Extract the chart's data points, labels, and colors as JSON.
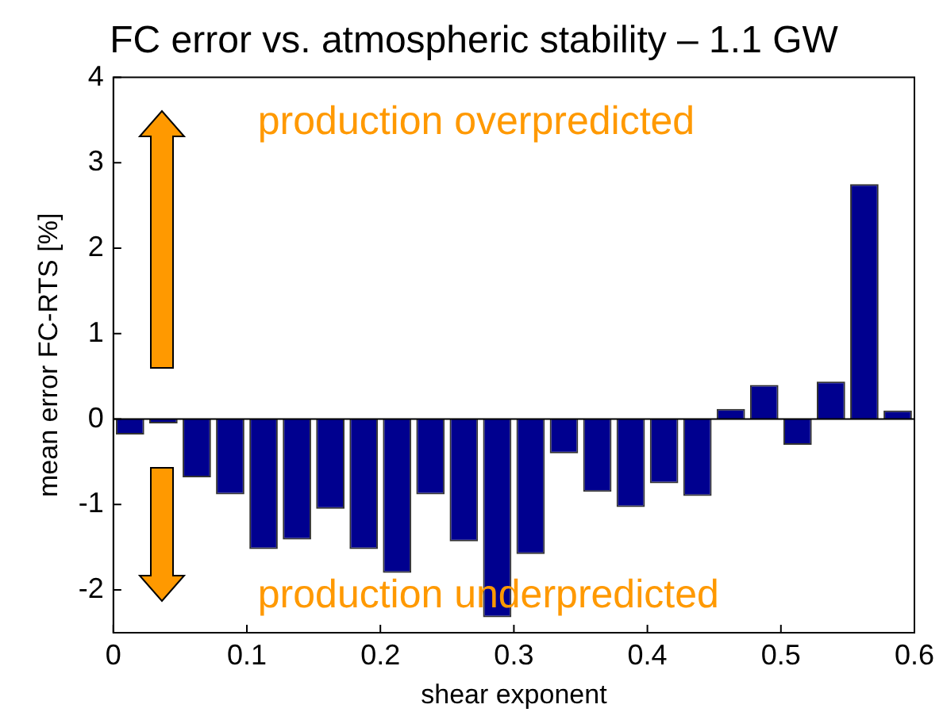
{
  "chart_data": {
    "type": "bar",
    "title": "FC error vs. atmospheric stability – 1.1 GW",
    "xlabel": "shear exponent",
    "ylabel": "mean error FC-RTS [%]",
    "x": [
      0.0125,
      0.0375,
      0.0625,
      0.0875,
      0.1125,
      0.1375,
      0.1625,
      0.1875,
      0.2125,
      0.2375,
      0.2625,
      0.2875,
      0.3125,
      0.3375,
      0.3625,
      0.3875,
      0.4125,
      0.4375,
      0.4625,
      0.4875,
      0.5125,
      0.5375,
      0.5625,
      0.5875
    ],
    "values": [
      -0.18,
      -0.05,
      -0.68,
      -0.88,
      -1.52,
      -1.41,
      -1.05,
      -1.52,
      -1.8,
      -0.88,
      -1.43,
      -2.32,
      -1.58,
      -0.4,
      -0.85,
      -1.03,
      -0.75,
      -0.9,
      0.12,
      0.4,
      -0.3,
      0.44,
      2.75,
      0.1
    ],
    "color": "#00008f",
    "xlim": [
      0,
      0.6
    ],
    "xticks": [
      0,
      0.1,
      0.2,
      0.3,
      0.4,
      0.5,
      0.6
    ],
    "ylim": [
      -2.5,
      4
    ],
    "yticks": [
      -2,
      -1,
      0,
      1,
      2,
      3,
      4
    ],
    "grid": false,
    "legend": false,
    "ref_lines": [
      {
        "axis": "y",
        "value": 0,
        "color": "#000000"
      }
    ],
    "annotations": [
      "production overpredicted",
      "production underpredicted"
    ]
  }
}
